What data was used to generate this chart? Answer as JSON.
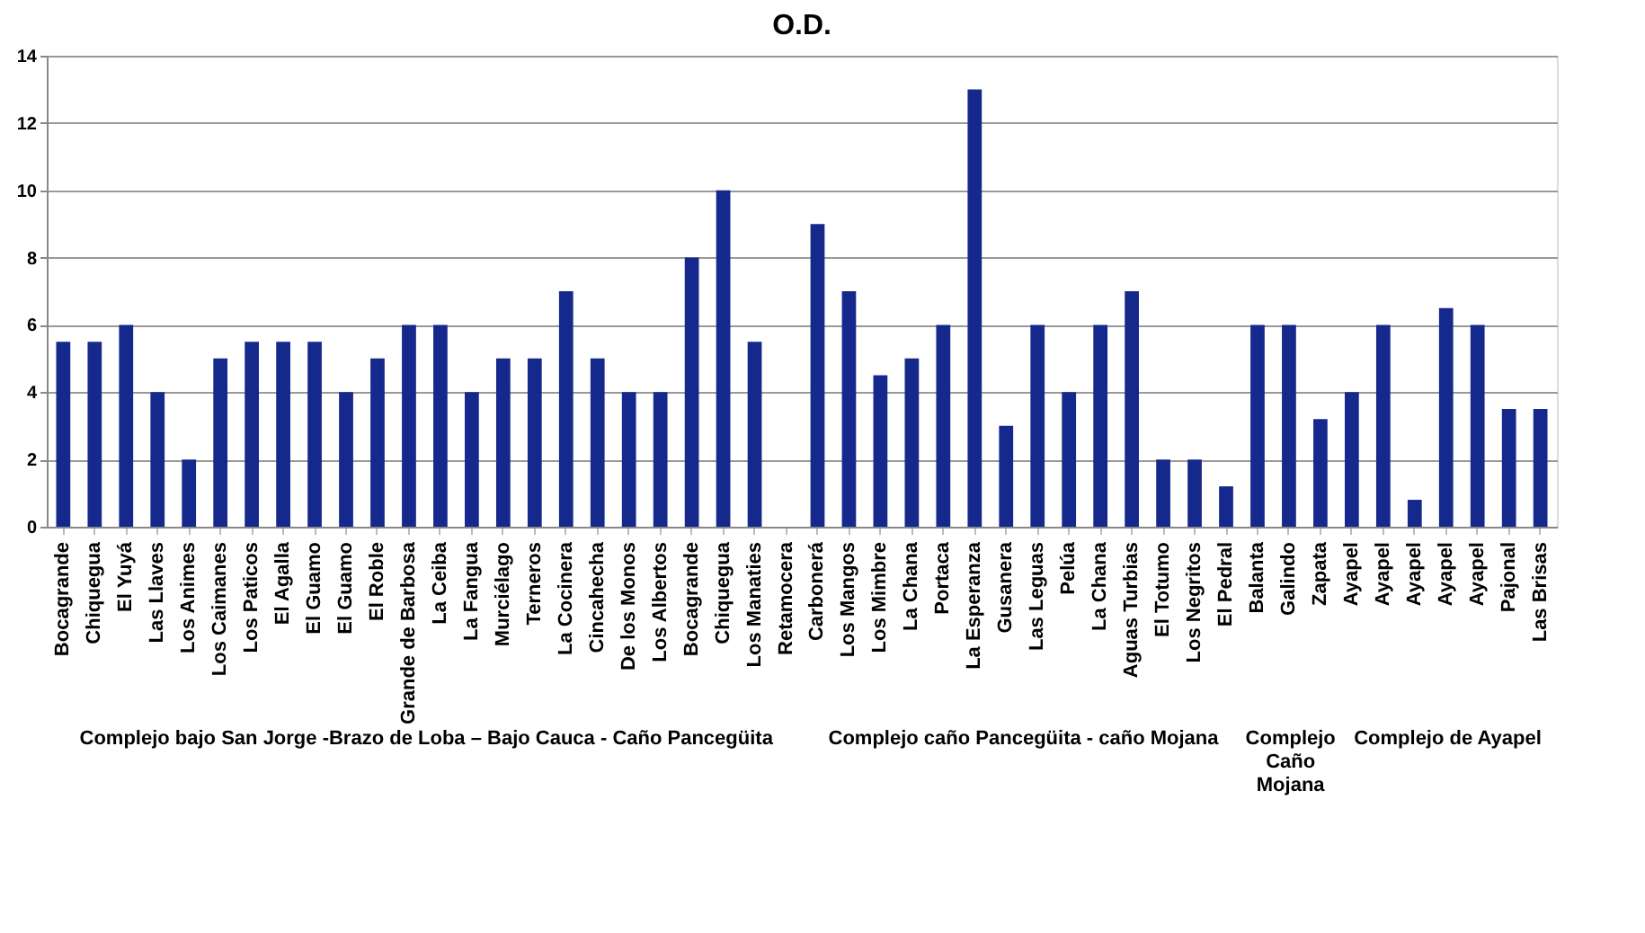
{
  "chart_data": {
    "type": "bar",
    "title": "O.D.",
    "categories": [
      "Bocagrande",
      "Chiquegua",
      "El Yuyá",
      "Las Llaves",
      "Los Animes",
      "Los Caimanes",
      "Los Paticos",
      "El Agalla",
      "El Guamo",
      "El Guamo",
      "El Roble",
      "Grande de Barbosa",
      "La Ceiba",
      "La Fangua",
      "Murciélago",
      "Terneros",
      "La Cocinera",
      "Cincahecha",
      "De los Monos",
      "Los Albertos",
      "Bocagrande",
      "Chiquegua",
      "Los Manaties",
      "Retamocera",
      "Carbonerá",
      "Los Mangos",
      "Los Mimbre",
      "La Chana",
      "Portaca",
      "La Esperanza",
      "Gusanera",
      "Las Leguas",
      "Pelúa",
      "La Chana",
      "Aguas Turbias",
      "El Totumo",
      "Los Negritos",
      "El Pedral",
      "Balanta",
      "Galindo",
      "Zapata",
      "Ayapel",
      "Ayapel",
      "Ayapel",
      "Ayapel",
      "Ayapel",
      "Pajonal",
      "Las Brisas"
    ],
    "values": [
      5.5,
      5.5,
      6,
      4,
      2,
      5,
      5.5,
      5.5,
      5.5,
      4,
      5,
      6,
      6,
      4,
      5,
      5,
      7,
      5,
      4,
      4,
      8,
      10,
      5.5,
      null,
      9,
      7,
      4.5,
      5,
      6,
      13,
      3,
      6,
      4,
      6,
      7,
      2,
      2,
      1.2,
      6,
      6,
      3.2,
      4,
      6,
      0.8,
      6.5,
      6,
      3.5,
      3.5
    ],
    "color": "#15288c",
    "ylim": [
      0,
      14
    ],
    "yticks": [
      0,
      2,
      4,
      6,
      8,
      10,
      12,
      14
    ],
    "grid": "y",
    "annotations": [
      "Complejo bajo San Jorge -Brazo de Loba – Bajo Cauca - Caño Pancegüita",
      "Complejo caño Pancegüita - caño Mojana",
      "Complejo Caño Mojana",
      "Complejo de Ayapel"
    ]
  }
}
